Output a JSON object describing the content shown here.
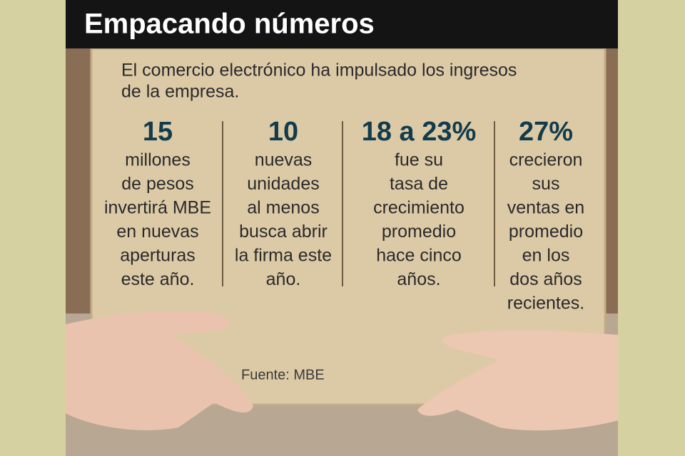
{
  "header": {
    "title": "Empacando números"
  },
  "intro": [
    "El comercio electrónico ha impulsado los ingresos",
    "de la empresa."
  ],
  "stats": [
    {
      "figure": "15",
      "lines": [
        "millones",
        "de pesos",
        "invertirá MBE",
        "en nuevas",
        "aperturas",
        "este año."
      ]
    },
    {
      "figure": "10",
      "lines": [
        "nuevas",
        "unidades",
        "al menos",
        "busca abrir",
        "la firma este",
        "año."
      ]
    },
    {
      "figure": "18 a 23%",
      "lines": [
        "fue su",
        "tasa de",
        "crecimiento",
        "promedio",
        "hace cinco",
        "años."
      ]
    },
    {
      "figure": "27%",
      "lines": [
        "crecieron",
        "sus",
        "ventas en",
        "promedio",
        "en los",
        "dos años",
        "recientes."
      ]
    }
  ],
  "source": "Fuente: MBE"
}
